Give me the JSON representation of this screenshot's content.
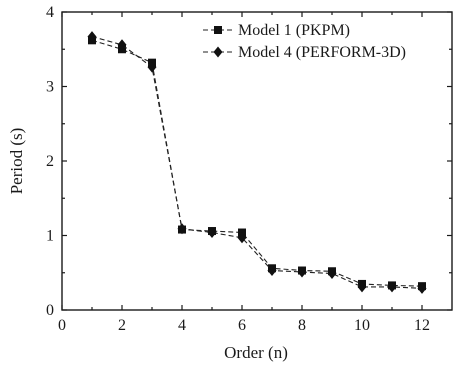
{
  "chart_data": {
    "type": "line",
    "xlabel": "Order (n)",
    "ylabel": "Period (s)",
    "xlim": [
      0,
      13
    ],
    "ylim": [
      0,
      4
    ],
    "x_ticks": [
      "0",
      "2",
      "4",
      "6",
      "8",
      "10",
      "12"
    ],
    "y_ticks": [
      "0",
      "1",
      "2",
      "3",
      "4"
    ],
    "x": [
      1,
      2,
      3,
      4,
      5,
      6,
      7,
      8,
      9,
      10,
      11,
      12
    ],
    "series": [
      {
        "name": "Model 1 (PKPM)",
        "marker": "square",
        "values": [
          3.62,
          3.5,
          3.32,
          1.08,
          1.06,
          1.04,
          0.56,
          0.53,
          0.52,
          0.35,
          0.33,
          0.32
        ],
        "color": "#222222"
      },
      {
        "name": "Model 4 (PERFORM-3D)",
        "marker": "diamond",
        "values": [
          3.67,
          3.56,
          3.26,
          1.09,
          1.04,
          0.97,
          0.53,
          0.51,
          0.49,
          0.31,
          0.31,
          0.29
        ],
        "color": "#222222"
      }
    ],
    "legend_position": "top-right",
    "grid": false
  }
}
